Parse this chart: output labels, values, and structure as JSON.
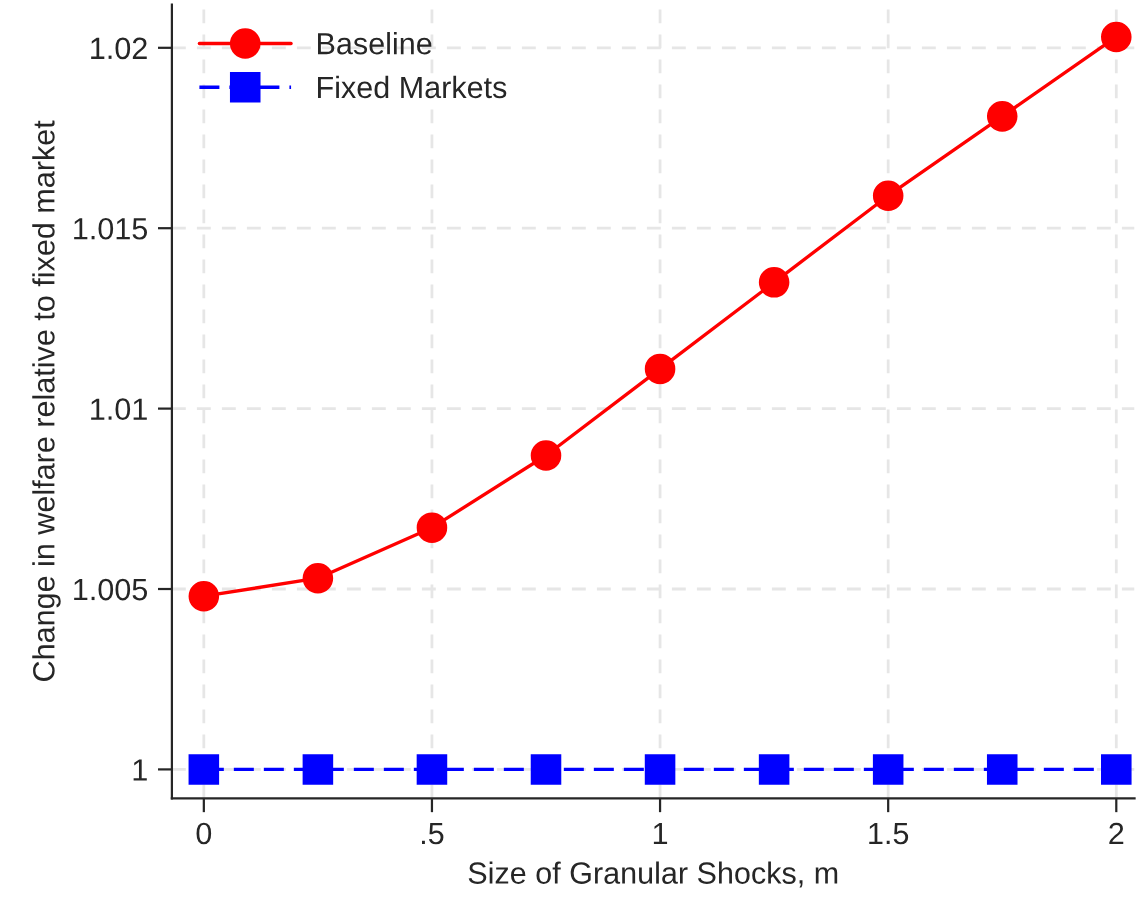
{
  "chart_data": {
    "type": "line",
    "xlabel": "Size of Granular Shocks, m",
    "ylabel": "Change in welfare relative to fixed market",
    "x": [
      0,
      0.25,
      0.5,
      0.75,
      1,
      1.25,
      1.5,
      1.75,
      2
    ],
    "series": [
      {
        "name": "Baseline",
        "color": "#ff0000",
        "marker": "circle",
        "line_style": "solid",
        "values": [
          1.0048,
          1.0053,
          1.0067,
          1.0087,
          1.0111,
          1.0135,
          1.0159,
          1.0181,
          1.0203
        ]
      },
      {
        "name": "Fixed Markets",
        "color": "#0000ff",
        "marker": "square",
        "line_style": "dashed",
        "values": [
          1,
          1,
          1,
          1,
          1,
          1,
          1,
          1,
          1
        ]
      }
    ],
    "xlim": [
      -0.07,
      2.04
    ],
    "xticks": [
      0,
      {
        "value": 0.5,
        "label": ".5"
      },
      1,
      1.5,
      2
    ],
    "ylim": [
      0.9992,
      1.0212
    ],
    "yticks": [
      1,
      1.005,
      1.01,
      1.015,
      1.02
    ],
    "grid": true,
    "legend": "top left"
  }
}
